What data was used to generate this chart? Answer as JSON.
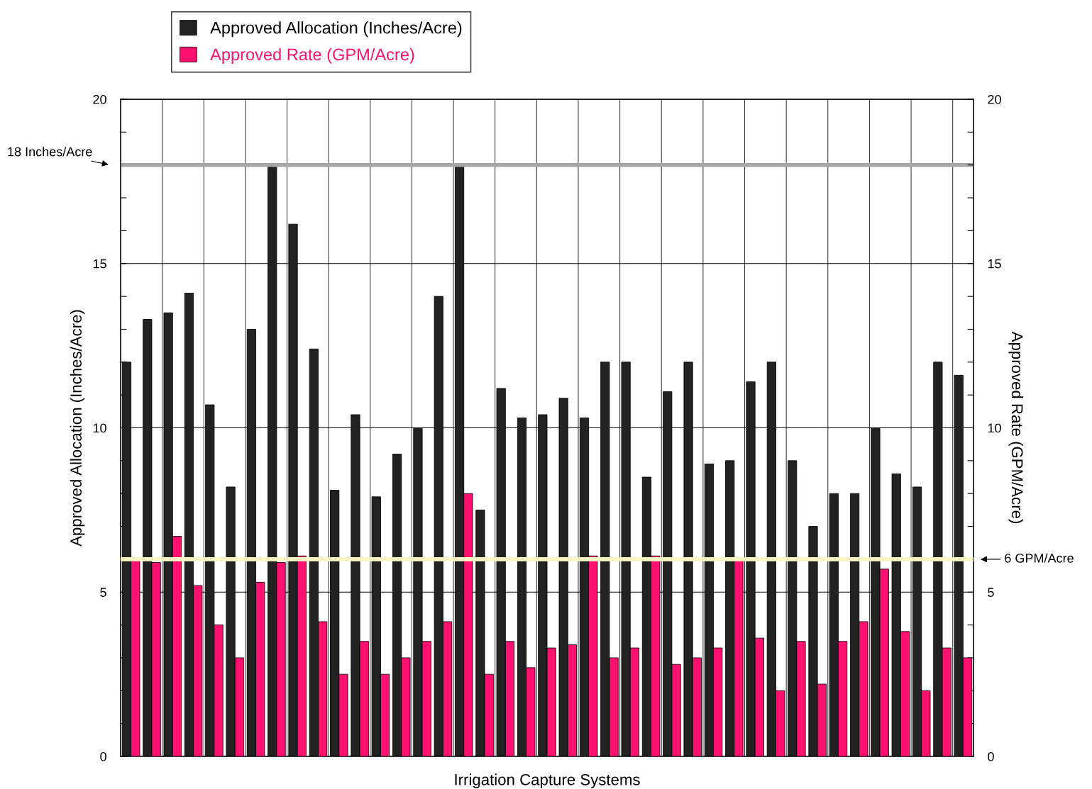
{
  "chart_data": {
    "type": "bar",
    "xlabel": "Irrigation Capture Systems",
    "ylabel": "Approved Allocation (Inches/Acre)",
    "y2label": "Approved Rate (GPM/Acre)",
    "categories": [
      null,
      null,
      null,
      null,
      null,
      null,
      null,
      null,
      null,
      null,
      null,
      null,
      null,
      null,
      null,
      null,
      null,
      null,
      null,
      null,
      null,
      null,
      null,
      null,
      null,
      null,
      null,
      null,
      null,
      null,
      null,
      null,
      null,
      null,
      null,
      null,
      null,
      null,
      null,
      null,
      null
    ],
    "series": [
      {
        "name": "Approved Allocation (Inches/Acre)",
        "color": "#222222",
        "values": [
          12,
          13.3,
          13.5,
          14.1,
          10.7,
          8.2,
          13,
          18,
          16.2,
          12.4,
          8.1,
          10.4,
          7.9,
          9.2,
          10,
          14,
          18,
          7.5,
          11.2,
          10.3,
          10.4,
          10.9,
          10.3,
          12,
          12,
          8.5,
          11.1,
          12,
          8.9,
          9,
          11.4,
          12,
          9,
          7,
          8,
          8,
          10,
          8.6,
          8.2,
          12,
          11.6
        ]
      },
      {
        "name": "Approved Rate (GPM/Acre)",
        "color": "#ff1170",
        "axis": "y2",
        "values": [
          6,
          5.9,
          6.7,
          5.2,
          4,
          3,
          5.3,
          5.9,
          6.1,
          4.1,
          2.5,
          3.5,
          2.5,
          3,
          3.5,
          4.1,
          8,
          2.5,
          3.5,
          2.7,
          3.3,
          3.4,
          6.1,
          3,
          3.3,
          6.1,
          2.8,
          3,
          3.3,
          6,
          3.6,
          2,
          3.5,
          2.2,
          3.5,
          4.1,
          5.7,
          3.8,
          2,
          3.3,
          3
        ]
      }
    ],
    "ylim": [
      0,
      20
    ],
    "y2lim": [
      0,
      20
    ],
    "yticks": [
      0,
      {
        "value": 1,
        "label": null
      },
      {
        "value": 2,
        "label": null
      },
      {
        "value": 3,
        "label": null
      },
      {
        "value": 4,
        "label": null
      },
      5,
      {
        "value": 6,
        "label": null
      },
      {
        "value": 7,
        "label": null
      },
      {
        "value": 8,
        "label": null
      },
      {
        "value": 9,
        "label": null
      },
      10,
      {
        "value": 11,
        "label": null
      },
      {
        "value": 12,
        "label": null
      },
      {
        "value": 13,
        "label": null
      },
      {
        "value": 14,
        "label": null
      },
      15,
      {
        "value": 16,
        "label": null
      },
      {
        "value": 17,
        "label": null
      },
      {
        "value": 18,
        "label": null
      },
      {
        "value": 19,
        "label": null
      },
      20
    ],
    "y2ticks": [
      0,
      {
        "value": 1,
        "label": null
      },
      {
        "value": 2,
        "label": null
      },
      {
        "value": 3,
        "label": null
      },
      {
        "value": 4,
        "label": null
      },
      5,
      {
        "value": 6,
        "label": null
      },
      {
        "value": 7,
        "label": null
      },
      {
        "value": 8,
        "label": null
      },
      {
        "value": 9,
        "label": null
      },
      10,
      {
        "value": 11,
        "label": null
      },
      {
        "value": 12,
        "label": null
      },
      {
        "value": 13,
        "label": null
      },
      {
        "value": 14,
        "label": null
      },
      15,
      {
        "value": 16,
        "label": null
      },
      {
        "value": 17,
        "label": null
      },
      {
        "value": 18,
        "label": null
      },
      {
        "value": 19,
        "label": null
      },
      20
    ],
    "ref_lines": [
      {
        "axis": "y",
        "value": 18,
        "label": "18 Inches/Acre",
        "color": "#a6a6a6"
      },
      {
        "axis": "y2",
        "value": 6,
        "label": "6 GPM/Acre",
        "color": "#f7f7c4"
      }
    ],
    "grid": true,
    "legend": "top left"
  }
}
